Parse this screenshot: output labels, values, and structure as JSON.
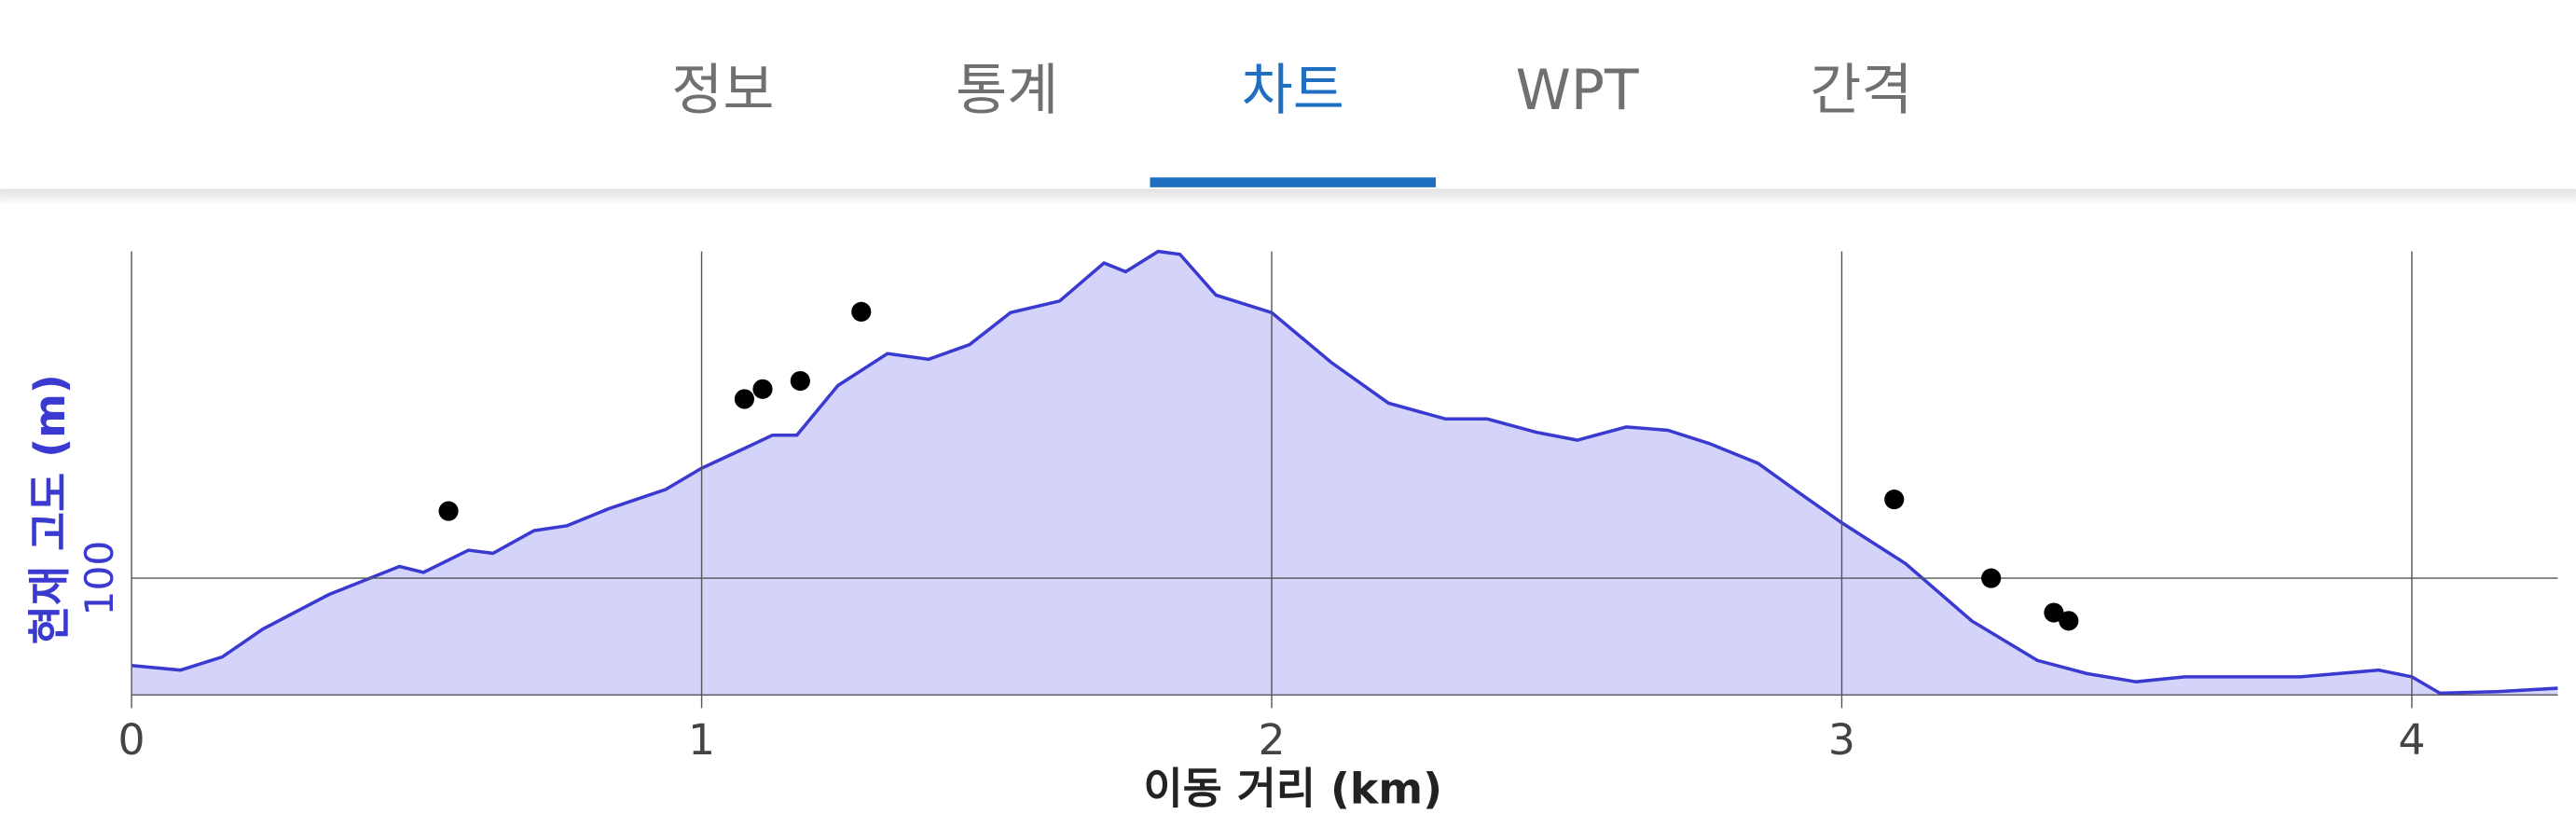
{
  "tabs": [
    "정보",
    "통계",
    "차트",
    "WPT",
    "간격"
  ],
  "active_tab": 2,
  "chart_data": {
    "type": "area",
    "ylabel": "현재 고도 (m)",
    "xlabel": "이동 거리 (km)",
    "xlim": [
      0,
      4.256
    ],
    "ylim": [
      60,
      212
    ],
    "xticks": [
      0,
      1,
      2,
      3,
      4
    ],
    "yticks": [
      100
    ],
    "grid": true,
    "color": "#3a3ad0",
    "fill": "#d4d4fa",
    "x": [
      0,
      0.086,
      0.159,
      0.23,
      0.346,
      0.47,
      0.512,
      0.591,
      0.634,
      0.706,
      0.764,
      0.836,
      0.937,
      1.0,
      1.081,
      1.124,
      1.167,
      1.239,
      1.326,
      1.398,
      1.47,
      1.542,
      1.628,
      1.706,
      1.744,
      1.801,
      1.839,
      1.902,
      2.0,
      2.104,
      2.205,
      2.305,
      2.378,
      2.464,
      2.536,
      2.622,
      2.695,
      2.767,
      2.853,
      2.925,
      3.0,
      3.112,
      3.228,
      3.343,
      3.43,
      3.516,
      3.602,
      3.804,
      3.942,
      4.0,
      4.049,
      4.15,
      4.256
    ],
    "values": [
      70.1,
      68.5,
      73,
      82.5,
      94.4,
      104,
      102,
      109.6,
      108.5,
      116.3,
      118,
      123.7,
      130.4,
      137.7,
      145,
      149,
      149,
      166,
      177,
      175,
      180,
      191,
      195,
      208,
      205,
      212,
      211,
      197,
      191,
      174,
      160,
      154.6,
      154.6,
      150,
      147.3,
      151.8,
      150.7,
      146.2,
      139.4,
      129.3,
      119,
      105,
      85.4,
      71.8,
      67.3,
      64.5,
      66.2,
      66.2,
      68.5,
      66.2,
      60.6,
      61.1,
      62.3
    ],
    "points": {
      "color": "#000000",
      "x": [
        0.556,
        1.075,
        1.107,
        1.173,
        1.28,
        3.092,
        3.262,
        3.372,
        3.398
      ],
      "values": [
        123,
        161.4,
        164.8,
        167.6,
        191.3,
        127,
        100,
        88.2,
        85.4
      ]
    }
  }
}
